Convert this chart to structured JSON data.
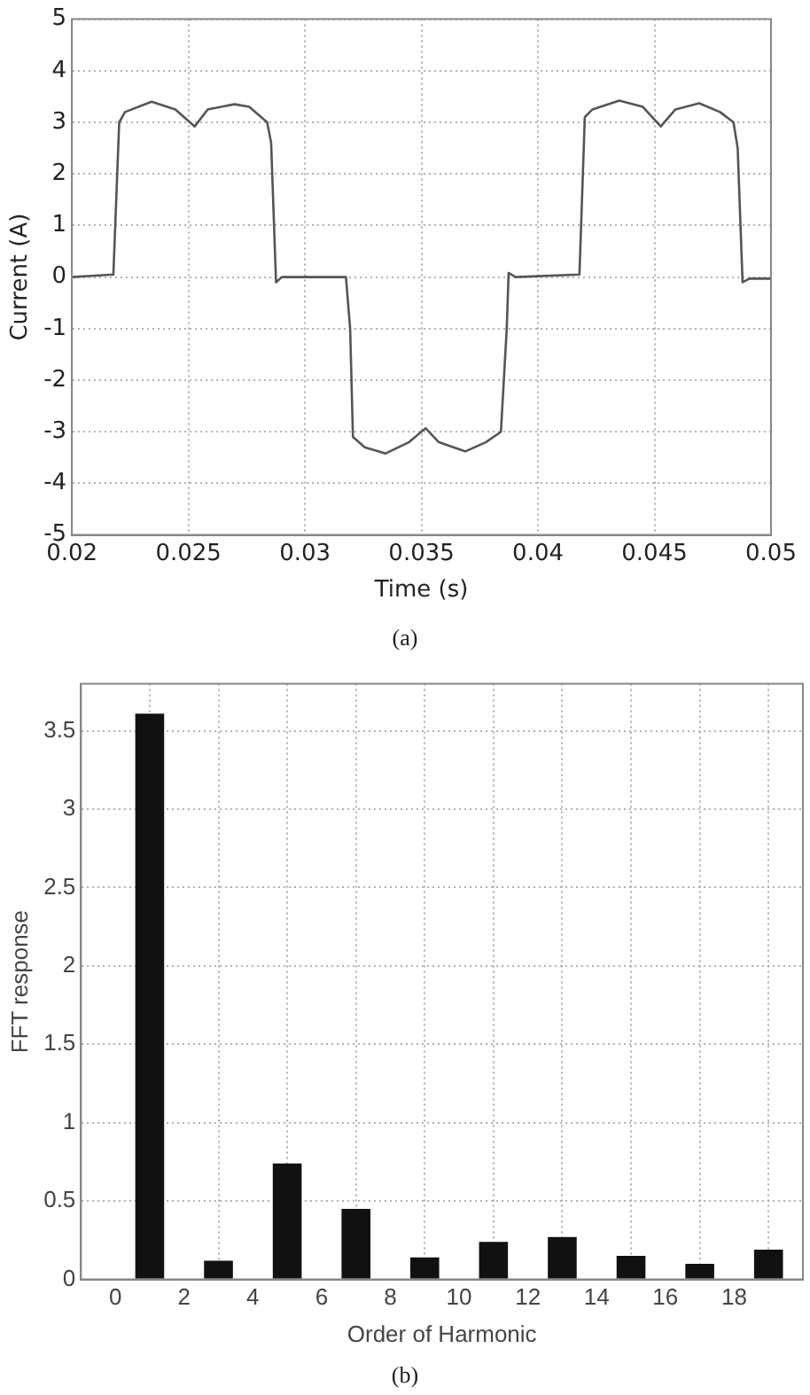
{
  "chart_data": [
    {
      "type": "line",
      "xlabel": "Time (s)",
      "ylabel": "Current (A)",
      "annotations": [
        "(a)"
      ],
      "xlim": [
        0.02,
        0.05
      ],
      "xticks": [
        0.02,
        0.025,
        0.03,
        0.035,
        0.04,
        0.045,
        0.05
      ],
      "ylim": [
        -5,
        5
      ],
      "yticks": [
        -5,
        -4,
        -3,
        -2,
        -1,
        0,
        1,
        2,
        3,
        4,
        5
      ],
      "grid": true,
      "marker": "none",
      "series": [
        {
          "color": "#555555",
          "x": [
            0.02,
            0.02178,
            0.02203,
            0.02228,
            0.02342,
            0.02444,
            0.02527,
            0.02583,
            0.02698,
            0.02761,
            0.02838,
            0.02855,
            0.02876,
            0.02901,
            0.03176,
            0.03194,
            0.03206,
            0.03257,
            0.03346,
            0.03447,
            0.03518,
            0.03574,
            0.03688,
            0.03777,
            0.03841,
            0.03866,
            0.03874,
            0.03904,
            0.04178,
            0.04201,
            0.04234,
            0.04349,
            0.0445,
            0.04527,
            0.0459,
            0.04692,
            0.04781,
            0.04839,
            0.04857,
            0.04878,
            0.04908,
            0.05
          ],
          "values": [
            0,
            0.05,
            3.0,
            3.2,
            3.4,
            3.25,
            2.92,
            3.25,
            3.35,
            3.3,
            3.0,
            2.6,
            -0.1,
            0,
            0,
            -1.0,
            -3.1,
            -3.3,
            -3.42,
            -3.2,
            -2.93,
            -3.2,
            -3.38,
            -3.2,
            -3.0,
            -1.0,
            0.08,
            0,
            0.05,
            3.1,
            3.25,
            3.42,
            3.3,
            2.92,
            3.25,
            3.37,
            3.2,
            3.0,
            2.5,
            -0.1,
            -0.03,
            -0.03
          ]
        }
      ]
    },
    {
      "type": "bar",
      "xlabel": "Order of Harmonic",
      "ylabel": "FFT response",
      "annotations": [
        "(b)"
      ],
      "xlim": [
        -1,
        20
      ],
      "xticks": [
        0,
        2,
        4,
        6,
        8,
        10,
        12,
        14,
        16,
        18
      ],
      "ylim": [
        0,
        3.8
      ],
      "yticks": [
        0,
        0.5,
        1,
        1.5,
        2,
        2.5,
        3,
        3.5
      ],
      "grid": true,
      "series": [
        {
          "color": "#111111",
          "x": [
            1,
            3,
            5,
            7,
            9,
            11,
            13,
            15,
            17,
            19
          ],
          "values": [
            3.61,
            0.12,
            0.74,
            0.45,
            0.14,
            0.24,
            0.27,
            0.15,
            0.1,
            0.19
          ]
        }
      ]
    }
  ]
}
